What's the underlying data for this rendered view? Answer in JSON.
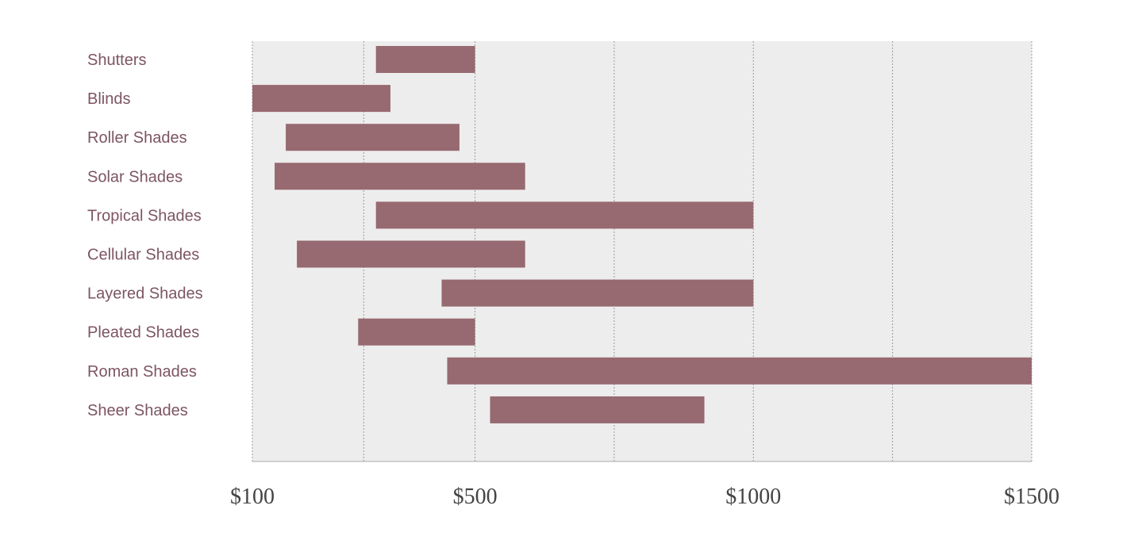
{
  "chart_data": {
    "type": "bar",
    "orientation": "horizontal",
    "subtype": "floating-range",
    "categories": [
      "Shutters",
      "Blinds",
      "Roller Shades",
      "Solar Shades",
      "Tropical Shades",
      "Cellular Shades",
      "Layered Shades",
      "Pleated Shades",
      "Roman Shades",
      "Sheer Shades"
    ],
    "series": [
      {
        "ranges": [
          [
            322,
            500
          ],
          [
            100,
            348
          ],
          [
            160,
            472
          ],
          [
            140,
            590
          ],
          [
            322,
            1000
          ],
          [
            180,
            590
          ],
          [
            440,
            1000
          ],
          [
            290,
            500
          ],
          [
            450,
            1500
          ],
          [
            527,
            912
          ]
        ]
      }
    ],
    "xlim": [
      100,
      1500
    ],
    "x_ticks": [
      100,
      500,
      1000,
      1500
    ],
    "x_tick_labels": [
      "$100",
      "$500",
      "$1000",
      "$1500"
    ],
    "x_gridlines": [
      100,
      300,
      500,
      750,
      1000,
      1250,
      1500
    ],
    "grid": true,
    "legend": "none",
    "colors": {
      "bar": "#976970",
      "plot_background": "#ededed",
      "category_text": "#7d5562",
      "tick_text": "#444444",
      "gridline": "#9a9a9a"
    }
  }
}
